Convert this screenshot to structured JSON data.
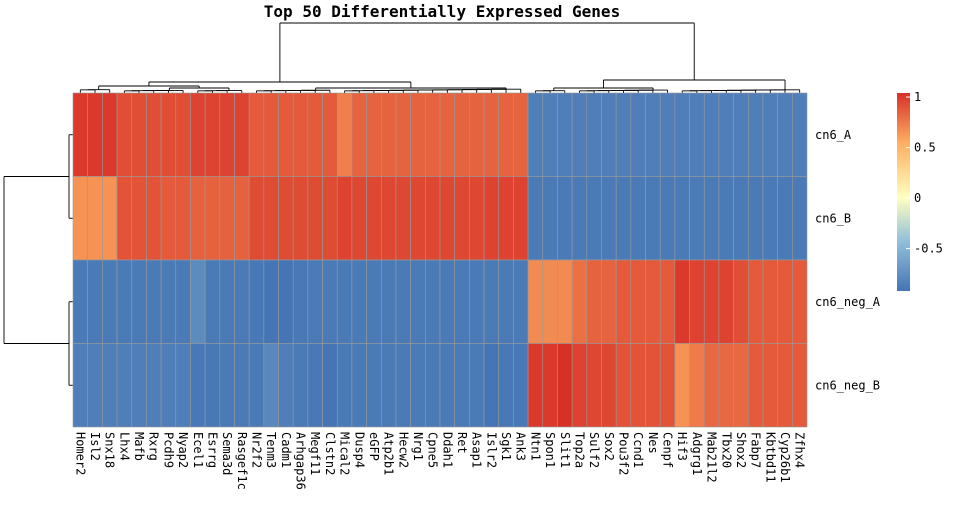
{
  "chart_data": {
    "type": "heatmap",
    "title": "Top 50 Differentially Expressed Genes",
    "rows": [
      "cn6_A",
      "cn6_B",
      "cn6_neg_A",
      "cn6_neg_B"
    ],
    "columns": [
      "Homer2",
      "Isl2",
      "Snx18",
      "Lhx4",
      "Mafb",
      "Rxrg",
      "Pcdh9",
      "Nyap2",
      "Ecel1",
      "Esrrg",
      "Sema3d",
      "Rasgef1c",
      "Nr2f2",
      "Tenm3",
      "Cadm1",
      "Arhgap36",
      "Megf11",
      "Clstn2",
      "Mical2",
      "Dusp4",
      "eGFP",
      "Atp2b1",
      "Hecw2",
      "Nrg1",
      "Cpne5",
      "Ddah1",
      "Ret",
      "Asap1",
      "Islr2",
      "Sgk1",
      "Ank3",
      "Ntn1",
      "Spon1",
      "Slit1",
      "Top2a",
      "Sulf2",
      "Sox2",
      "Pou3f2",
      "Ccnd1",
      "Nes",
      "Cenpf",
      "Hif3",
      "Adgrg1",
      "Mab21l2",
      "Tbx20",
      "Shox2",
      "Fabp7",
      "Kbtbd11",
      "Cyp26b1",
      "Zfhx4"
    ],
    "values": [
      [
        1.0,
        1.0,
        1.0,
        0.91,
        0.91,
        0.91,
        0.91,
        0.91,
        0.96,
        0.96,
        0.96,
        0.96,
        0.86,
        0.86,
        0.86,
        0.86,
        0.86,
        0.86,
        0.7,
        0.82,
        0.82,
        0.82,
        0.82,
        0.82,
        0.82,
        0.82,
        0.82,
        0.82,
        0.82,
        0.82,
        0.82,
        -0.86,
        -0.86,
        -0.86,
        -0.86,
        -0.86,
        -0.86,
        -0.86,
        -0.86,
        -0.86,
        -0.86,
        -0.86,
        -0.86,
        -0.86,
        -0.86,
        -0.86,
        -0.86,
        -0.86,
        -0.86,
        -0.86
      ],
      [
        0.62,
        0.62,
        0.62,
        0.89,
        0.89,
        0.89,
        0.86,
        0.86,
        0.83,
        0.83,
        0.83,
        0.83,
        0.92,
        0.92,
        0.92,
        0.92,
        0.92,
        0.92,
        0.96,
        0.94,
        0.94,
        0.94,
        0.94,
        0.94,
        0.94,
        0.94,
        0.94,
        0.94,
        0.96,
        0.96,
        0.96,
        -0.88,
        -0.88,
        -0.88,
        -0.88,
        -0.88,
        -0.88,
        -0.88,
        -0.88,
        -0.88,
        -0.88,
        -0.88,
        -0.88,
        -0.88,
        -0.88,
        -0.88,
        -0.88,
        -0.88,
        -0.88,
        -0.88
      ],
      [
        -0.88,
        -0.88,
        -0.88,
        -0.88,
        -0.88,
        -0.88,
        -0.88,
        -0.88,
        -0.78,
        -0.88,
        -0.88,
        -0.88,
        -0.9,
        -0.92,
        -0.92,
        -0.9,
        -0.88,
        -0.88,
        -0.88,
        -0.88,
        -0.88,
        -0.88,
        -0.88,
        -0.88,
        -0.88,
        -0.88,
        -0.88,
        -0.88,
        -0.88,
        -0.88,
        -0.88,
        0.65,
        0.65,
        0.65,
        0.76,
        0.82,
        0.82,
        0.86,
        0.86,
        0.86,
        0.86,
        1.0,
        0.96,
        0.96,
        0.96,
        0.91,
        0.86,
        0.86,
        0.86,
        0.86
      ],
      [
        -0.86,
        -0.86,
        -0.86,
        -0.86,
        -0.86,
        -0.86,
        -0.86,
        -0.86,
        -0.9,
        -0.9,
        -0.88,
        -0.88,
        -0.88,
        -0.8,
        -0.86,
        -0.88,
        -0.9,
        -0.92,
        -0.88,
        -0.88,
        -0.88,
        -0.88,
        -0.88,
        -0.88,
        -0.88,
        -0.88,
        -0.88,
        -0.88,
        -0.92,
        -0.9,
        -0.9,
        1.0,
        1.0,
        1.04,
        0.96,
        0.94,
        0.94,
        0.89,
        0.89,
        0.89,
        0.89,
        0.62,
        0.72,
        0.8,
        0.8,
        0.8,
        0.86,
        0.86,
        0.86,
        0.86
      ]
    ],
    "colorbar": {
      "ticks": [
        1,
        0.5,
        0,
        -0.5
      ],
      "tick_labels": [
        "1",
        "0.5",
        "0",
        "-0.5"
      ],
      "range": [
        -0.92,
        1.04
      ]
    },
    "colors": {
      "low": "#4575b4",
      "mid_low": "#e0f3f8",
      "mid": "#ffffbf",
      "mid_high": "#fdae61",
      "high": "#d73027"
    },
    "row_dendrogram": "((cn6_A, cn6_B), (cn6_neg_A, cn6_neg_B))",
    "column_dendrogram_groups": [
      "Homer2 to Ank3",
      "Ntn1 to Zfhx4"
    ],
    "grid": false
  }
}
